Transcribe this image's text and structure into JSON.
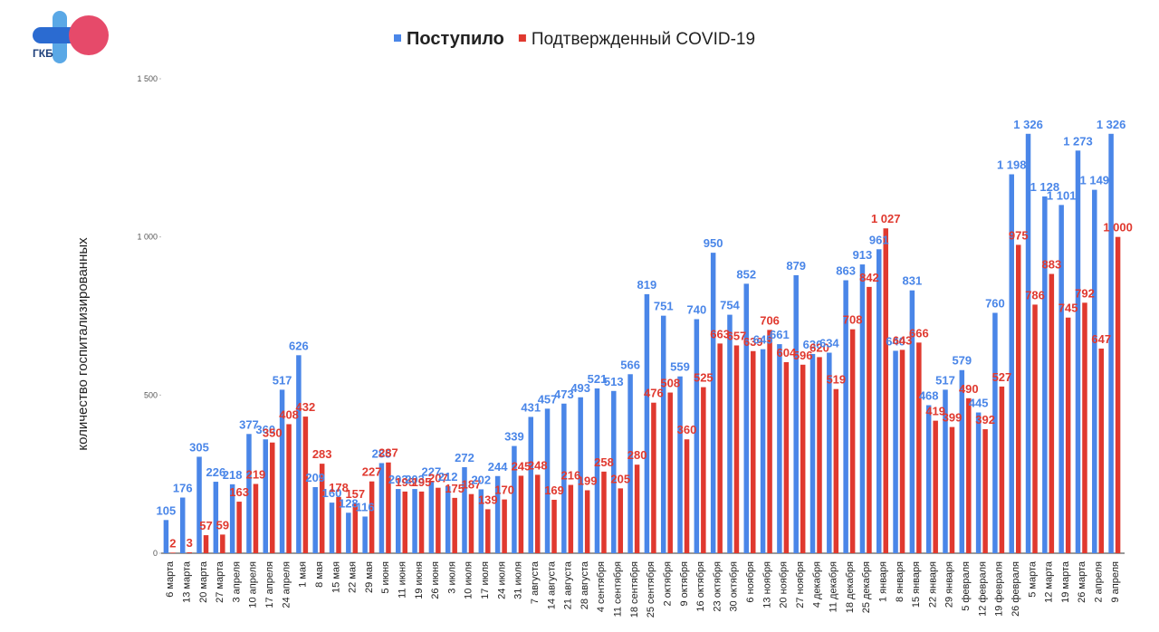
{
  "logo": {
    "text": "ГКБ"
  },
  "chart_data": {
    "type": "bar",
    "y_label": "количество госпитализированных",
    "categories": [
      "6 марта",
      "13 марта",
      "20 марта",
      "27 марта",
      "3 апреля",
      "10 апреля",
      "17 апреля",
      "24 апреля",
      "1 мая",
      "8 мая",
      "15 мая",
      "22 мая",
      "29 мая",
      "5 июня",
      "11 июня",
      "19 июня",
      "26 июня",
      "3 июля",
      "10 июля",
      "17 июля",
      "24 июля",
      "31 июля",
      "7 августа",
      "14 августа",
      "21 августа",
      "28 августа",
      "4 сентября",
      "11 сентября",
      "18 сентября",
      "25 сентября",
      "2 октября",
      "9 октября",
      "16 октября",
      "23 октября",
      "30 октября",
      "6 ноября",
      "13 ноября",
      "20 ноября",
      "27 ноября",
      "4 декабря",
      "11 декабря",
      "18 декабря",
      "25 декабря",
      "1 января",
      "8 января",
      "15 января",
      "22 января",
      "29 января",
      "5 февраля",
      "12 февраля",
      "19 февраля",
      "26 февраля",
      "5 марта",
      "12 марта",
      "19 марта",
      "26 марта",
      "2 апреля",
      "9 апреля"
    ],
    "series": [
      {
        "name": "Поступило",
        "color": "#4a86e8",
        "values": [
          105,
          176,
          305,
          226,
          218,
          377,
          360,
          517,
          626,
          209,
          160,
          128,
          116,
          285,
          203,
          203,
          227,
          212,
          272,
          202,
          244,
          339,
          431,
          457,
          473,
          493,
          521,
          513,
          566,
          819,
          751,
          559,
          740,
          950,
          754,
          852,
          645,
          661,
          879,
          630,
          634,
          863,
          913,
          961,
          640,
          831,
          468,
          517,
          579,
          445,
          760,
          1198,
          1326,
          1128,
          1101,
          1273,
          1149,
          1326
        ],
        "value_labels": [
          "105",
          "176",
          "305",
          "226",
          "218",
          "377",
          "360",
          "517",
          "626",
          "209",
          "160",
          "128",
          "116",
          "285",
          "203",
          "203",
          "227",
          "212",
          "272",
          "202",
          "244",
          "339",
          "431",
          "457",
          "473",
          "493",
          "521",
          "513",
          "566",
          "819",
          "751",
          "559",
          "740",
          "950",
          "754",
          "852",
          "645",
          "661",
          "879",
          "630",
          "634",
          "863",
          "913",
          "961",
          "640",
          "831",
          "468",
          "517",
          "579",
          "445",
          "760",
          "1 198",
          "1 326",
          "1 128",
          "1 101",
          "1 273",
          "1 149",
          "1 326"
        ]
      },
      {
        "name": "Подтвержденный COVID-19",
        "color": "#e0392f",
        "values": [
          2,
          3,
          57,
          59,
          163,
          219,
          350,
          408,
          432,
          283,
          178,
          157,
          227,
          287,
          195,
          195,
          207,
          175,
          187,
          139,
          170,
          245,
          248,
          169,
          216,
          199,
          258,
          205,
          280,
          476,
          508,
          360,
          525,
          663,
          657,
          639,
          706,
          604,
          596,
          620,
          519,
          708,
          842,
          1027,
          643,
          666,
          419,
          399,
          490,
          392,
          527,
          975,
          786,
          883,
          745,
          792,
          647,
          1000
        ],
        "value_labels": [
          "2",
          "3",
          "57",
          "59",
          "163",
          "219",
          "350",
          "408",
          "432",
          "283",
          "178",
          "157",
          "227",
          "287",
          "195",
          "195",
          "207",
          "175",
          "187",
          "139",
          "170",
          "245",
          "248",
          "169",
          "216",
          "199",
          "258",
          "205",
          "280",
          "476",
          "508",
          "360",
          "525",
          "663",
          "657",
          "639",
          "706",
          "604",
          "596",
          "620",
          "519",
          "708",
          "842",
          "1 027",
          "643",
          "666",
          "419",
          "399",
          "490",
          "392",
          "527",
          "975",
          "786",
          "883",
          "745",
          "792",
          "647",
          "1 000"
        ]
      }
    ],
    "ylim": [
      0,
      1500
    ],
    "yticks": [
      0,
      500,
      {
        "value": 1000,
        "label": "1 000"
      },
      {
        "value": 1500,
        "label": "1 500"
      }
    ],
    "grid": false,
    "legend": "top"
  }
}
